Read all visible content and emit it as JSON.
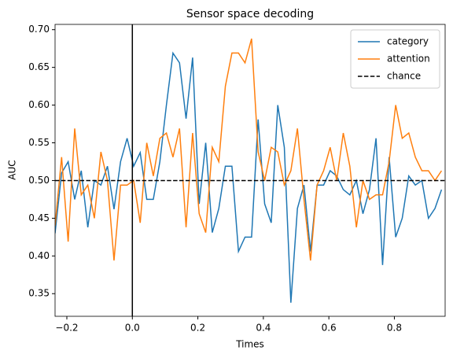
{
  "chart_data": {
    "type": "line",
    "title": "Sensor space decoding",
    "xlabel": "Times",
    "ylabel": "AUC",
    "x": [
      -0.236,
      -0.216,
      -0.196,
      -0.176,
      -0.156,
      -0.136,
      -0.116,
      -0.096,
      -0.076,
      -0.056,
      -0.036,
      -0.016,
      0.004,
      0.024,
      0.044,
      0.064,
      0.084,
      0.104,
      0.124,
      0.144,
      0.164,
      0.184,
      0.204,
      0.224,
      0.244,
      0.264,
      0.284,
      0.304,
      0.324,
      0.344,
      0.364,
      0.384,
      0.404,
      0.424,
      0.444,
      0.464,
      0.484,
      0.504,
      0.524,
      0.544,
      0.564,
      0.584,
      0.604,
      0.624,
      0.644,
      0.664,
      0.684,
      0.704,
      0.724,
      0.744,
      0.764,
      0.784,
      0.804,
      0.824,
      0.844,
      0.864,
      0.884,
      0.904,
      0.924,
      0.944
    ],
    "series": [
      {
        "name": "category",
        "color": "#1f77b4",
        "values": [
          0.43,
          0.51,
          0.525,
          0.475,
          0.513,
          0.438,
          0.5,
          0.494,
          0.519,
          0.462,
          0.525,
          0.556,
          0.519,
          0.537,
          0.475,
          0.475,
          0.525,
          0.6,
          0.669,
          0.656,
          0.582,
          0.663,
          0.469,
          0.55,
          0.431,
          0.463,
          0.519,
          0.519,
          0.406,
          0.425,
          0.425,
          0.581,
          0.469,
          0.444,
          0.6,
          0.544,
          0.338,
          0.463,
          0.494,
          0.406,
          0.494,
          0.494,
          0.513,
          0.506,
          0.488,
          0.481,
          0.5,
          0.456,
          0.488,
          0.556,
          0.388,
          0.531,
          0.425,
          0.45,
          0.506,
          0.494,
          0.5,
          0.45,
          0.463,
          0.488
        ]
      },
      {
        "name": "attention",
        "color": "#ff7f0e",
        "values": [
          0.44,
          0.531,
          0.419,
          0.569,
          0.481,
          0.494,
          0.45,
          0.538,
          0.5,
          0.394,
          0.494,
          0.494,
          0.5,
          0.444,
          0.55,
          0.506,
          0.556,
          0.563,
          0.531,
          0.569,
          0.438,
          0.563,
          0.456,
          0.431,
          0.544,
          0.525,
          0.625,
          0.669,
          0.669,
          0.656,
          0.688,
          0.538,
          0.5,
          0.544,
          0.538,
          0.494,
          0.513,
          0.569,
          0.475,
          0.394,
          0.494,
          0.513,
          0.544,
          0.5,
          0.563,
          0.519,
          0.438,
          0.5,
          0.475,
          0.481,
          0.481,
          0.525,
          0.6,
          0.556,
          0.563,
          0.531,
          0.513,
          0.513,
          0.5,
          0.513
        ]
      }
    ],
    "hlines": [
      {
        "name": "chance",
        "value": 0.5,
        "color": "#000000",
        "dashed": true
      }
    ],
    "vlines": [
      {
        "value": 0,
        "color": "#000000"
      }
    ],
    "xlim": [
      -0.236,
      0.955
    ],
    "ylim": [
      0.32,
      0.707
    ],
    "xticks": [
      {
        "value": -0.2,
        "label": "−0.2"
      },
      {
        "value": 0,
        "label": "0.0"
      },
      0.2,
      0.4,
      0.6,
      0.8
    ],
    "yticks": [
      0.35,
      {
        "value": 0.4,
        "label": "0.40"
      },
      0.45,
      {
        "value": 0.5,
        "label": "0.50"
      },
      0.55,
      {
        "value": 0.6,
        "label": "0.60"
      },
      0.65,
      {
        "value": 0.7,
        "label": "0.70"
      }
    ],
    "legend": "upper right"
  }
}
